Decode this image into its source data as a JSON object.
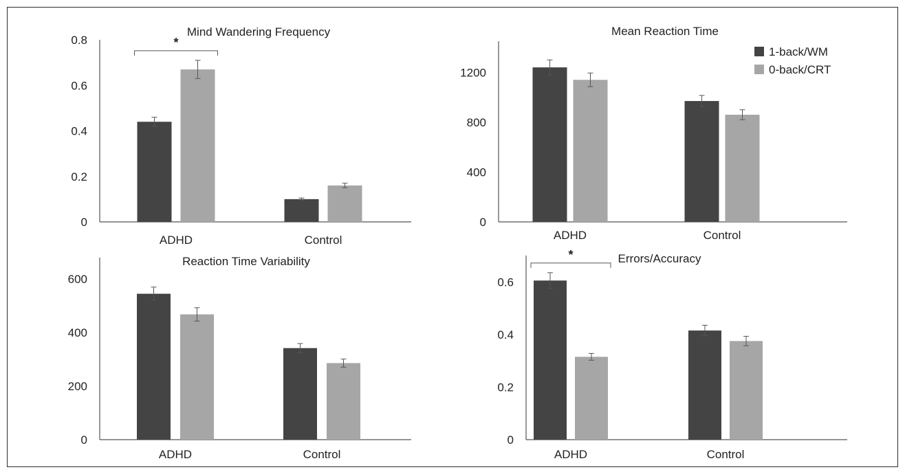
{
  "colors": {
    "series_wm": "#444444",
    "series_crt": "#a6a6a6",
    "axis": "#555555",
    "text": "#222222",
    "error_bar": "#555555"
  },
  "legend": {
    "placement": "top-right",
    "items": [
      "1-back/WM",
      "0-back/CRT"
    ]
  },
  "chart_data": [
    {
      "type": "bar",
      "title": "Mind Wandering Frequency",
      "categories": [
        "ADHD",
        "Control"
      ],
      "series": [
        {
          "name": "1-back/WM",
          "values": [
            0.44,
            0.1
          ],
          "errors": [
            0.02,
            0.005
          ]
        },
        {
          "name": "0-back/CRT",
          "values": [
            0.67,
            0.16
          ],
          "errors": [
            0.04,
            0.01
          ]
        }
      ],
      "ylim": [
        0,
        0.8
      ],
      "yticks": [
        0,
        0.2,
        0.4,
        0.6,
        0.8
      ],
      "ytick_labels": [
        "0",
        "0.2",
        "0.4",
        "0.6",
        "0.8"
      ],
      "significance": [
        {
          "category": "ADHD",
          "label": "*"
        }
      ],
      "grid": false
    },
    {
      "type": "bar",
      "title": "Mean Reaction Time",
      "categories": [
        "ADHD",
        "Control"
      ],
      "series": [
        {
          "name": "1-back/WM",
          "values": [
            1240,
            970
          ],
          "errors": [
            60,
            45
          ]
        },
        {
          "name": "0-back/CRT",
          "values": [
            1140,
            860
          ],
          "errors": [
            55,
            40
          ]
        }
      ],
      "ylim": [
        0,
        1450
      ],
      "yticks": [
        0,
        400,
        800,
        1200
      ],
      "ytick_labels": [
        "0",
        "400",
        "800",
        "1200"
      ],
      "significance": [],
      "grid": false
    },
    {
      "type": "bar",
      "title": "Reaction Time Variability",
      "categories": [
        "ADHD",
        "Control"
      ],
      "series": [
        {
          "name": "1-back/WM",
          "values": [
            545,
            342
          ],
          "errors": [
            25,
            17
          ]
        },
        {
          "name": "0-back/CRT",
          "values": [
            468,
            286
          ],
          "errors": [
            25,
            15
          ]
        }
      ],
      "ylim": [
        0,
        680
      ],
      "yticks": [
        0,
        200,
        400,
        600
      ],
      "ytick_labels": [
        "0",
        "200",
        "400",
        "600"
      ],
      "significance": [],
      "grid": false
    },
    {
      "type": "bar",
      "title": "Errors/Accuracy",
      "categories": [
        "ADHD",
        "Control"
      ],
      "series": [
        {
          "name": "1-back/WM",
          "values": [
            0.605,
            0.415
          ],
          "errors": [
            0.03,
            0.02
          ]
        },
        {
          "name": "0-back/CRT",
          "values": [
            0.315,
            0.375
          ],
          "errors": [
            0.013,
            0.018
          ]
        }
      ],
      "ylim": [
        0,
        0.7
      ],
      "yticks": [
        0,
        0.2,
        0.4,
        0.6
      ],
      "ytick_labels": [
        "0",
        "0.2",
        "0.4",
        "0.6"
      ],
      "significance": [
        {
          "category": "ADHD",
          "label": "*"
        }
      ],
      "grid": false
    }
  ]
}
